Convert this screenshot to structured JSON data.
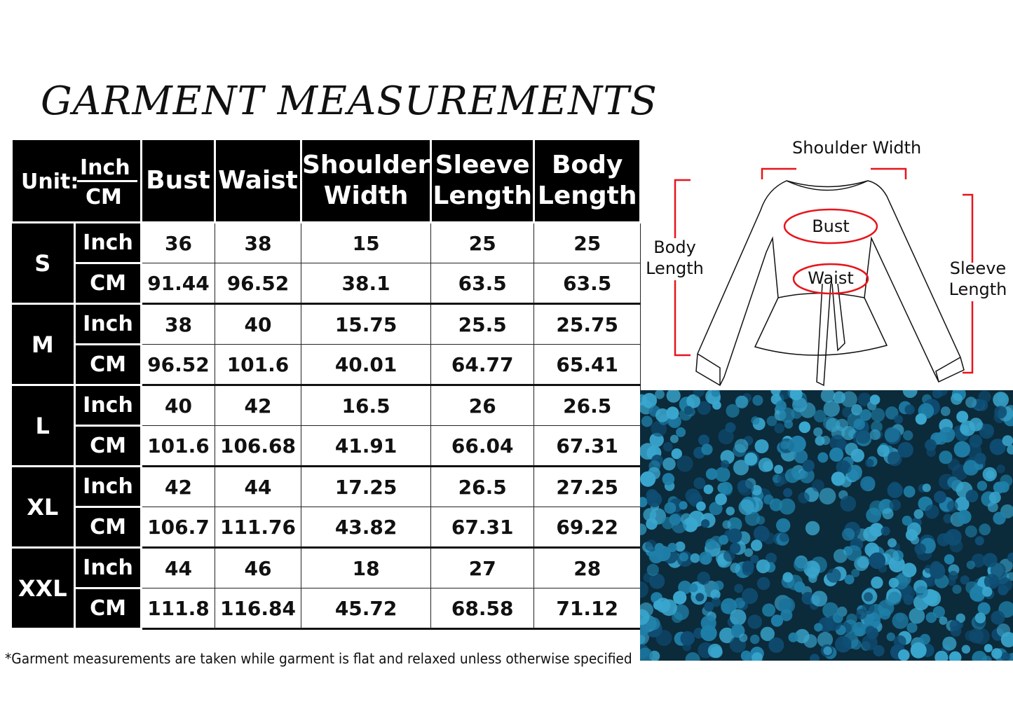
{
  "title": "GARMENT MEASUREMENTS",
  "header": {
    "unit_label": "Unit:",
    "unit_inch": "Inch",
    "unit_cm": "CM",
    "columns": [
      "Bust",
      "Waist",
      "Shoulder Width",
      "Sleeve Length",
      "Body Length"
    ]
  },
  "sizes": [
    {
      "size": "S",
      "inch_label": "Inch",
      "cm_label": "CM",
      "inch": [
        "36",
        "38",
        "15",
        "25",
        "25"
      ],
      "cm": [
        "91.44",
        "96.52",
        "38.1",
        "63.5",
        "63.5"
      ]
    },
    {
      "size": "M",
      "inch_label": "Inch",
      "cm_label": "CM",
      "inch": [
        "38",
        "40",
        "15.75",
        "25.5",
        "25.75"
      ],
      "cm": [
        "96.52",
        "101.6",
        "40.01",
        "64.77",
        "65.41"
      ]
    },
    {
      "size": "L",
      "inch_label": "Inch",
      "cm_label": "CM",
      "inch": [
        "40",
        "42",
        "16.5",
        "26",
        "26.5"
      ],
      "cm": [
        "101.6",
        "106.68",
        "41.91",
        "66.04",
        "67.31"
      ]
    },
    {
      "size": "XL",
      "inch_label": "Inch",
      "cm_label": "CM",
      "inch": [
        "42",
        "44",
        "17.25",
        "26.5",
        "27.25"
      ],
      "cm": [
        "106.7",
        "111.76",
        "43.82",
        "67.31",
        "69.22"
      ]
    },
    {
      "size": "XXL",
      "inch_label": "Inch",
      "cm_label": "CM",
      "inch": [
        "44",
        "46",
        "18",
        "27",
        "28"
      ],
      "cm": [
        "111.8",
        "116.84",
        "45.72",
        "68.58",
        "71.12"
      ]
    }
  ],
  "note": "*Garment measurements are taken while garment is flat and relaxed unless otherwise specified",
  "diagram": {
    "shoulder": "Shoulder Width",
    "body": "Body Length",
    "sleeve": "Sleeve Length",
    "bust": "Bust",
    "waist": "Waist",
    "accent_color": "#e8141b"
  },
  "fabric": {
    "colors": [
      "#0b2a3a",
      "#1f7fa8",
      "#3aa7cf",
      "#0f4d73"
    ]
  }
}
